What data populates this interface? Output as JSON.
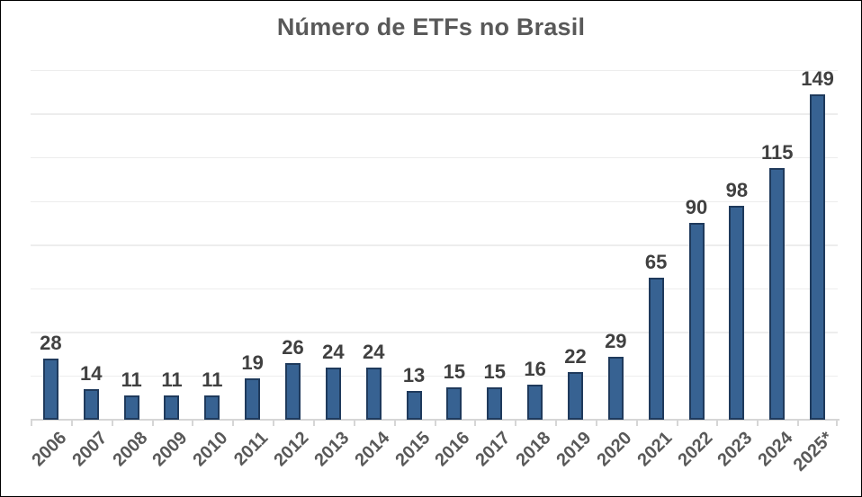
{
  "chart_data": {
    "type": "bar",
    "title": "Número de ETFs no Brasil",
    "categories": [
      "2006",
      "2007",
      "2008",
      "2009",
      "2010",
      "2011",
      "2012",
      "2013",
      "2014",
      "2015",
      "2016",
      "2017",
      "2018",
      "2019",
      "2020",
      "2021",
      "2022",
      "2023",
      "2024",
      "2025*"
    ],
    "values": [
      28,
      14,
      11,
      11,
      11,
      19,
      26,
      24,
      24,
      13,
      15,
      15,
      16,
      22,
      29,
      65,
      90,
      98,
      115,
      149
    ],
    "xlabel": "",
    "ylabel": "",
    "ylim": [
      0,
      160
    ],
    "grid_step": 20,
    "grid": "horizontal-only",
    "legend_position": "none",
    "data_labels": "above-bars",
    "x_tick_rotation_deg": 45,
    "colors": {
      "bar_fill": "#376292",
      "bar_border": "#1F3A5C",
      "value_label": "#404040",
      "axis_label": "#595959",
      "title": "#595959",
      "gridline": "#EDEDED",
      "axis_line": "#D6D6D6",
      "background": "#FFFFFF",
      "frame_border": "#000000"
    }
  }
}
